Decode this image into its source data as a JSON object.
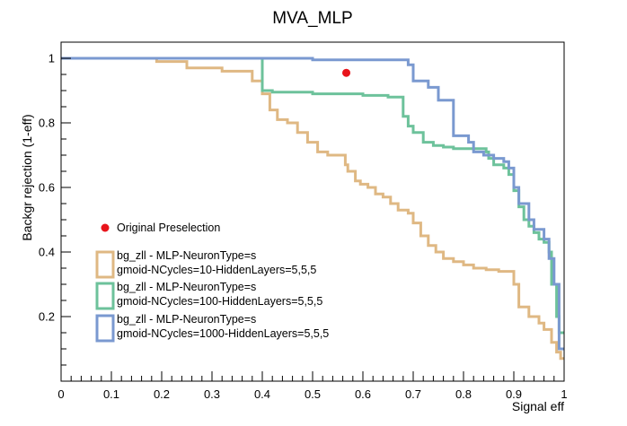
{
  "chart_data": {
    "type": "line",
    "title": "MVA_MLP",
    "xlabel": "Signal eff",
    "ylabel": "Backgr rejection (1-eff)",
    "xlim": [
      0,
      1
    ],
    "ylim": [
      0,
      1.05
    ],
    "x_ticks": [
      0,
      0.1,
      0.2,
      0.3,
      0.4,
      0.5,
      0.6,
      0.7,
      0.8,
      0.9,
      1
    ],
    "x_tick_labels": [
      "0",
      "0.1",
      "0.2",
      "0.3",
      "0.4",
      "0.5",
      "0.6",
      "0.7",
      "0.8",
      "0.9",
      "1"
    ],
    "y_ticks": [
      0.2,
      0.4,
      0.6,
      0.8,
      1
    ],
    "y_tick_labels": [
      "0.2",
      "0.4",
      "0.6",
      "0.8",
      "1"
    ],
    "grid": false,
    "legend_placement": "bottom-left",
    "marker": {
      "label": "Original Preselection",
      "x": 0.567,
      "y": 0.955,
      "color": "#e8141b"
    },
    "series": [
      {
        "name_lines": [
          "bg_zll - MLP-NeuronType=s",
          "gmoid-NCycles=10-HiddenLayers=5,5,5"
        ],
        "color": "#dfb883",
        "x": [
          0,
          0.19,
          0.19,
          0.25,
          0.25,
          0.32,
          0.32,
          0.38,
          0.38,
          0.4,
          0.4,
          0.415,
          0.415,
          0.43,
          0.43,
          0.45,
          0.45,
          0.47,
          0.47,
          0.49,
          0.49,
          0.51,
          0.51,
          0.53,
          0.53,
          0.565,
          0.565,
          0.57,
          0.57,
          0.585,
          0.585,
          0.595,
          0.595,
          0.61,
          0.61,
          0.625,
          0.625,
          0.64,
          0.64,
          0.655,
          0.655,
          0.67,
          0.67,
          0.69,
          0.69,
          0.7,
          0.7,
          0.715,
          0.715,
          0.73,
          0.73,
          0.745,
          0.745,
          0.76,
          0.76,
          0.78,
          0.78,
          0.8,
          0.8,
          0.82,
          0.82,
          0.845,
          0.845,
          0.87,
          0.87,
          0.9,
          0.9,
          0.91,
          0.91,
          0.93,
          0.93,
          0.95,
          0.95,
          0.96,
          0.96,
          0.975,
          0.975,
          0.985,
          0.985,
          0.993,
          0.993,
          1
        ],
        "y": [
          1,
          1,
          0.99,
          0.99,
          0.97,
          0.97,
          0.96,
          0.96,
          0.93,
          0.93,
          0.89,
          0.89,
          0.84,
          0.84,
          0.81,
          0.81,
          0.8,
          0.8,
          0.77,
          0.77,
          0.74,
          0.74,
          0.71,
          0.71,
          0.7,
          0.7,
          0.67,
          0.67,
          0.65,
          0.65,
          0.62,
          0.62,
          0.61,
          0.61,
          0.6,
          0.6,
          0.58,
          0.58,
          0.57,
          0.57,
          0.55,
          0.55,
          0.53,
          0.53,
          0.52,
          0.52,
          0.49,
          0.49,
          0.45,
          0.45,
          0.42,
          0.42,
          0.4,
          0.4,
          0.38,
          0.38,
          0.37,
          0.37,
          0.36,
          0.36,
          0.35,
          0.35,
          0.345,
          0.345,
          0.34,
          0.34,
          0.3,
          0.3,
          0.23,
          0.23,
          0.2,
          0.2,
          0.18,
          0.18,
          0.16,
          0.16,
          0.12,
          0.12,
          0.09,
          0.09,
          0.07,
          0.07
        ]
      },
      {
        "name_lines": [
          "bg_zll - MLP-NeuronType=s",
          "gmoid-NCycles=100-HiddenLayers=5,5,5"
        ],
        "color": "#6dc29b",
        "x": [
          0,
          0.4,
          0.4,
          0.42,
          0.42,
          0.5,
          0.5,
          0.6,
          0.6,
          0.65,
          0.65,
          0.68,
          0.68,
          0.69,
          0.69,
          0.7,
          0.7,
          0.72,
          0.72,
          0.74,
          0.74,
          0.76,
          0.76,
          0.78,
          0.78,
          0.82,
          0.82,
          0.845,
          0.845,
          0.85,
          0.85,
          0.86,
          0.86,
          0.88,
          0.88,
          0.89,
          0.89,
          0.9,
          0.9,
          0.91,
          0.91,
          0.92,
          0.92,
          0.93,
          0.93,
          0.94,
          0.94,
          0.95,
          0.95,
          0.96,
          0.96,
          0.97,
          0.97,
          0.975,
          0.975,
          0.985,
          0.985,
          0.99,
          0.99,
          1
        ],
        "y": [
          1,
          1,
          0.9,
          0.9,
          0.895,
          0.895,
          0.89,
          0.89,
          0.885,
          0.885,
          0.88,
          0.88,
          0.82,
          0.82,
          0.79,
          0.79,
          0.77,
          0.77,
          0.74,
          0.74,
          0.73,
          0.73,
          0.725,
          0.725,
          0.72,
          0.72,
          0.72,
          0.72,
          0.71,
          0.71,
          0.69,
          0.69,
          0.67,
          0.67,
          0.66,
          0.66,
          0.64,
          0.64,
          0.59,
          0.59,
          0.54,
          0.54,
          0.5,
          0.5,
          0.48,
          0.48,
          0.46,
          0.46,
          0.44,
          0.44,
          0.43,
          0.43,
          0.4,
          0.4,
          0.3,
          0.3,
          0.2,
          0.2,
          0.15,
          0.15
        ]
      },
      {
        "name_lines": [
          "bg_zll - MLP-NeuronType=s",
          "gmoid-NCycles=1000-HiddenLayers=5,5,5"
        ],
        "color": "#7a99d0",
        "x": [
          0,
          0.5,
          0.5,
          0.69,
          0.69,
          0.7,
          0.7,
          0.73,
          0.73,
          0.75,
          0.75,
          0.78,
          0.78,
          0.81,
          0.81,
          0.82,
          0.82,
          0.84,
          0.84,
          0.86,
          0.86,
          0.88,
          0.88,
          0.89,
          0.89,
          0.9,
          0.9,
          0.91,
          0.91,
          0.93,
          0.93,
          0.94,
          0.94,
          0.96,
          0.96,
          0.97,
          0.97,
          0.98,
          0.98,
          0.99,
          0.99,
          1
        ],
        "y": [
          1,
          1,
          0.995,
          0.995,
          0.98,
          0.98,
          0.93,
          0.93,
          0.91,
          0.91,
          0.87,
          0.87,
          0.76,
          0.76,
          0.74,
          0.74,
          0.71,
          0.71,
          0.7,
          0.7,
          0.69,
          0.69,
          0.68,
          0.68,
          0.66,
          0.66,
          0.6,
          0.6,
          0.55,
          0.55,
          0.5,
          0.5,
          0.47,
          0.47,
          0.44,
          0.44,
          0.38,
          0.38,
          0.3,
          0.3,
          0.1,
          0.1
        ]
      }
    ]
  }
}
